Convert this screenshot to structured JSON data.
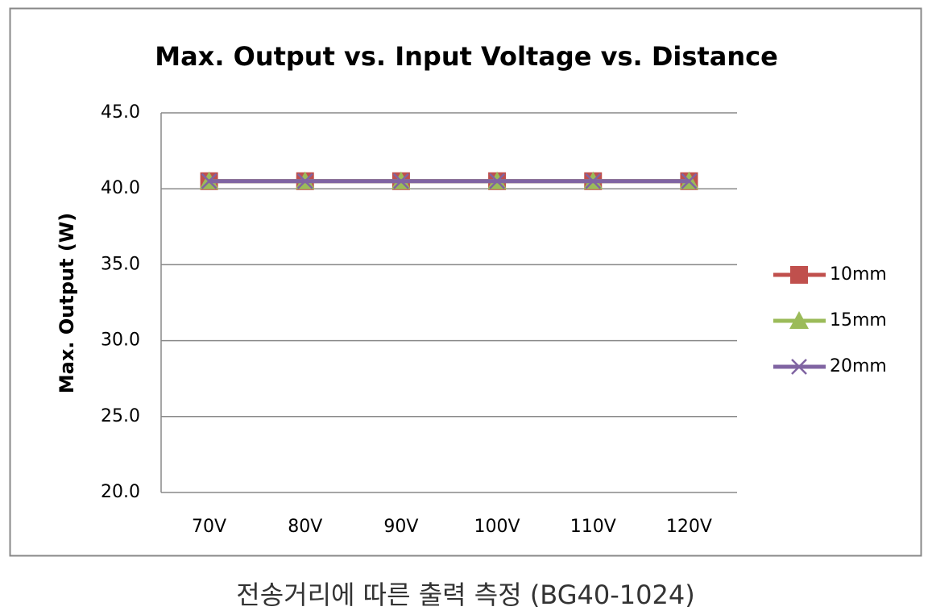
{
  "chart_data": {
    "type": "line",
    "title": "Max. Output vs. Input Voltage vs. Distance",
    "y_label": "Max. Output (W)",
    "caption": "전송거리에 따른 출력 측정 (BG40-1024)",
    "categories": [
      "70V",
      "80V",
      "90V",
      "100V",
      "110V",
      "120V"
    ],
    "series": [
      {
        "name": "10mm",
        "color": "#c0504d",
        "marker": "square",
        "values": [
          40.5,
          40.5,
          40.5,
          40.5,
          40.5,
          40.5
        ]
      },
      {
        "name": "15mm",
        "color": "#9bbb59",
        "marker": "triangle",
        "values": [
          40.5,
          40.5,
          40.5,
          40.5,
          40.5,
          40.5
        ]
      },
      {
        "name": "20mm",
        "color": "#8064a2",
        "marker": "x",
        "values": [
          40.5,
          40.5,
          40.5,
          40.5,
          40.5,
          40.5
        ]
      }
    ],
    "ylim": [
      20,
      45
    ],
    "yticks": [
      {
        "value": 20,
        "label": "20.0"
      },
      {
        "value": 25,
        "label": "25.0"
      },
      {
        "value": 30,
        "label": "30.0"
      },
      {
        "value": 35,
        "label": "35.0"
      },
      {
        "value": 40,
        "label": "40.0"
      },
      {
        "value": 45,
        "label": "45.0"
      }
    ],
    "grid": true,
    "legend": "right"
  }
}
